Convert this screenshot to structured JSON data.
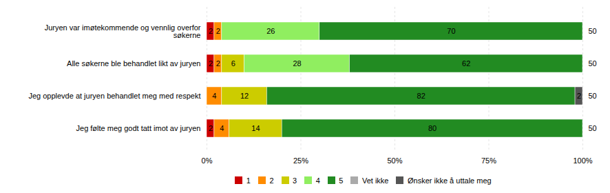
{
  "chart_data": {
    "type": "bar",
    "orientation": "horizontal",
    "stacked": true,
    "data_labels": true,
    "grid": true,
    "legend": "bottom",
    "categories": [
      "Juryen var imøtekommende og vennlig overfor\nsøkerne",
      "Alle søkerne ble behandlet likt av juryen",
      "Jeg opplevde at juryen behandlet meg med respekt",
      "Jeg følte meg godt tatt imot av juryen"
    ],
    "series": [
      {
        "name": "1",
        "color": "#CC0000",
        "values": [
          2,
          2,
          0,
          2
        ]
      },
      {
        "name": "2",
        "color": "#FF8C00",
        "values": [
          2,
          2,
          4,
          4
        ]
      },
      {
        "name": "3",
        "color": "#CCCC00",
        "values": [
          0,
          6,
          12,
          14
        ]
      },
      {
        "name": "4",
        "color": "#90EE60",
        "values": [
          26,
          28,
          0,
          0
        ]
      },
      {
        "name": "5",
        "color": "#228B22",
        "values": [
          70,
          62,
          82,
          80
        ]
      },
      {
        "name": "Vet ikke",
        "color": "#AAAAAA",
        "values": [
          0,
          0,
          0,
          0
        ]
      },
      {
        "name": "Ønsker ikke å uttale meg",
        "color": "#555555",
        "values": [
          0,
          0,
          2,
          0
        ]
      }
    ],
    "n_labels": [
      "50",
      "50",
      "50",
      "50"
    ],
    "xlim": [
      0,
      100
    ],
    "xticks": [
      {
        "value": 0,
        "label": "0%"
      },
      {
        "value": 25,
        "label": "25%"
      },
      {
        "value": 50,
        "label": "50%"
      },
      {
        "value": 75,
        "label": "75%"
      },
      {
        "value": 100,
        "label": "100%"
      }
    ]
  }
}
